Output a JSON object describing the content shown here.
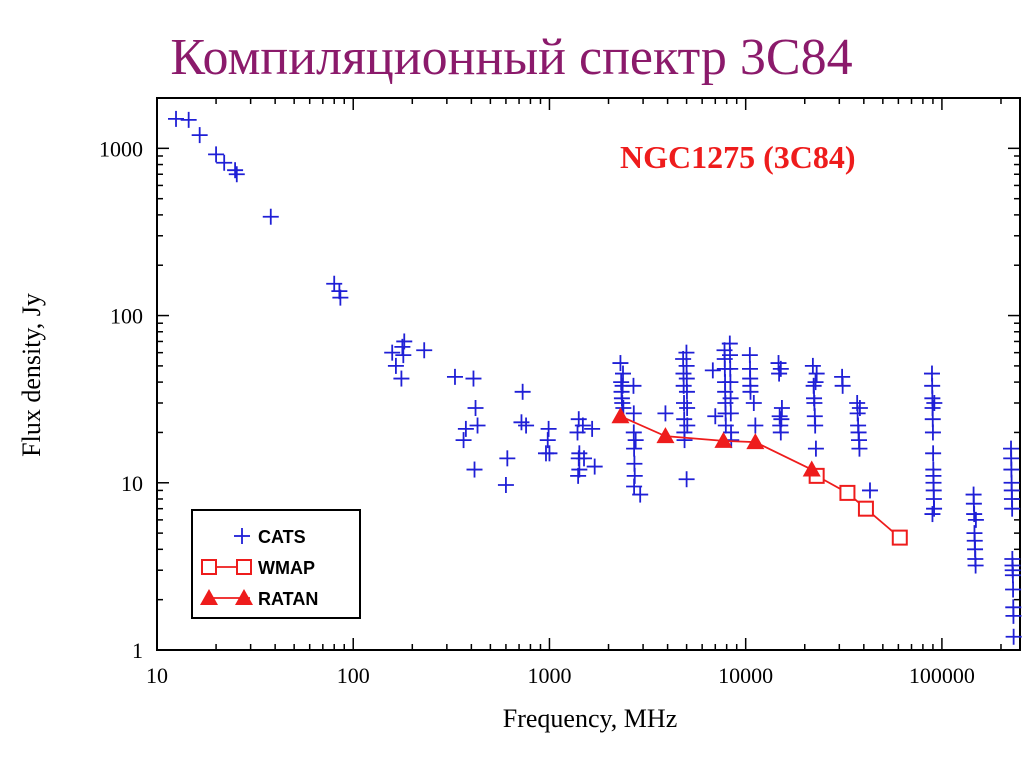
{
  "slide": {
    "title": "Компиляционный спектр 3C84"
  },
  "colors": {
    "title": "#8b1a6b",
    "cats": "#1f1fd6",
    "wmap": "#ee1c1c",
    "ratan": "#ee1c1c",
    "annotation": "#ee1c1c"
  },
  "chart_data": {
    "type": "scatter",
    "title": "",
    "xlabel": "Frequency,  MHz",
    "ylabel": "Flux density, Jy",
    "xscale": "log",
    "yscale": "log",
    "xlim": [
      10,
      250000
    ],
    "ylim": [
      1,
      2000
    ],
    "xticks": [
      10,
      100,
      1000,
      10000,
      100000
    ],
    "xtick_labels": [
      "10",
      "100",
      "1000",
      "10000",
      "100000"
    ],
    "yticks": [
      1,
      10,
      100,
      1000
    ],
    "ytick_labels": [
      "1",
      "10",
      "100",
      "1000"
    ],
    "grid": false,
    "legend_position": "bottom-left",
    "annotation": "NGC1275 (3C84)",
    "series": [
      {
        "name": "CATS",
        "marker": "plus",
        "points": [
          [
            12.5,
            1500
          ],
          [
            14.5,
            1480
          ],
          [
            16.5,
            1200
          ],
          [
            20,
            920
          ],
          [
            22,
            820
          ],
          [
            25,
            740
          ],
          [
            25.5,
            700
          ],
          [
            38,
            390
          ],
          [
            80,
            155
          ],
          [
            85,
            140
          ],
          [
            86,
            128
          ],
          [
            158,
            60
          ],
          [
            165,
            50
          ],
          [
            178,
            65
          ],
          [
            180,
            58
          ],
          [
            182,
            70
          ],
          [
            176,
            42
          ],
          [
            230,
            62
          ],
          [
            330,
            43
          ],
          [
            410,
            42
          ],
          [
            365,
            18
          ],
          [
            375,
            21
          ],
          [
            420,
            28
          ],
          [
            430,
            22
          ],
          [
            415,
            12
          ],
          [
            610,
            14
          ],
          [
            600,
            9.7
          ],
          [
            730,
            35
          ],
          [
            720,
            23
          ],
          [
            760,
            22
          ],
          [
            960,
            15
          ],
          [
            990,
            21
          ],
          [
            980,
            18
          ],
          [
            1000,
            15
          ],
          [
            1390,
            20
          ],
          [
            1410,
            14
          ],
          [
            1420,
            12
          ],
          [
            1400,
            11
          ],
          [
            1480,
            22
          ],
          [
            1500,
            14
          ],
          [
            1410,
            24
          ],
          [
            1420,
            15
          ],
          [
            1700,
            12.5
          ],
          [
            1650,
            21
          ],
          [
            2300,
            52
          ],
          [
            2320,
            40
          ],
          [
            2330,
            35
          ],
          [
            2340,
            32
          ],
          [
            2350,
            30
          ],
          [
            2360,
            38
          ],
          [
            2380,
            28
          ],
          [
            2370,
            45
          ],
          [
            2680,
            38
          ],
          [
            2690,
            20
          ],
          [
            2700,
            16
          ],
          [
            2710,
            13
          ],
          [
            2720,
            11
          ],
          [
            2690,
            26
          ],
          [
            2700,
            9.5
          ],
          [
            2900,
            8.5
          ],
          [
            2750,
            18
          ],
          [
            3900,
            26
          ],
          [
            4800,
            55
          ],
          [
            4820,
            45
          ],
          [
            4830,
            38
          ],
          [
            4850,
            30
          ],
          [
            4860,
            24
          ],
          [
            4870,
            20
          ],
          [
            4880,
            18
          ],
          [
            4990,
            60
          ],
          [
            5000,
            50
          ],
          [
            5010,
            42
          ],
          [
            5020,
            35
          ],
          [
            5030,
            28
          ],
          [
            5040,
            22
          ],
          [
            5000,
            10.5
          ],
          [
            6800,
            47
          ],
          [
            7000,
            25
          ],
          [
            7800,
            62
          ],
          [
            7820,
            55
          ],
          [
            7830,
            48
          ],
          [
            7850,
            40
          ],
          [
            7860,
            35
          ],
          [
            7880,
            30
          ],
          [
            7900,
            26
          ],
          [
            7920,
            22
          ],
          [
            8300,
            68
          ],
          [
            8320,
            58
          ],
          [
            8340,
            48
          ],
          [
            8360,
            40
          ],
          [
            8380,
            32
          ],
          [
            8400,
            26
          ],
          [
            8420,
            20
          ],
          [
            8440,
            18
          ],
          [
            10500,
            58
          ],
          [
            10520,
            48
          ],
          [
            10540,
            42
          ],
          [
            10560,
            38
          ],
          [
            10580,
            35
          ],
          [
            11000,
            30
          ],
          [
            11200,
            22
          ],
          [
            14700,
            52
          ],
          [
            14800,
            45
          ],
          [
            14900,
            25
          ],
          [
            15000,
            22
          ],
          [
            15100,
            20
          ],
          [
            15200,
            24
          ],
          [
            15300,
            28
          ],
          [
            15100,
            48
          ],
          [
            22000,
            50
          ],
          [
            22200,
            38
          ],
          [
            22300,
            32
          ],
          [
            22400,
            30
          ],
          [
            22500,
            25
          ],
          [
            22600,
            22
          ],
          [
            22700,
            40
          ],
          [
            22800,
            16
          ],
          [
            23000,
            45
          ],
          [
            31000,
            43
          ],
          [
            31200,
            38
          ],
          [
            37000,
            30
          ],
          [
            37200,
            26
          ],
          [
            37400,
            22
          ],
          [
            37600,
            20
          ],
          [
            37800,
            18
          ],
          [
            38000,
            16
          ],
          [
            38200,
            28
          ],
          [
            43000,
            9
          ],
          [
            89000,
            45
          ],
          [
            89200,
            38
          ],
          [
            89400,
            32
          ],
          [
            89600,
            28
          ],
          [
            89800,
            24
          ],
          [
            90000,
            20
          ],
          [
            90200,
            15
          ],
          [
            90400,
            12
          ],
          [
            90600,
            10
          ],
          [
            90800,
            9
          ],
          [
            91000,
            8
          ],
          [
            91200,
            7
          ],
          [
            89500,
            6.5
          ],
          [
            90500,
            11
          ],
          [
            91500,
            30
          ],
          [
            145000,
            8.5
          ],
          [
            145500,
            7.5
          ],
          [
            146000,
            6.5
          ],
          [
            146500,
            5
          ],
          [
            147000,
            4.5
          ],
          [
            147500,
            4
          ],
          [
            148000,
            3.5
          ],
          [
            148500,
            3.2
          ],
          [
            149000,
            6
          ],
          [
            225000,
            16
          ],
          [
            225500,
            14
          ],
          [
            226000,
            12
          ],
          [
            226500,
            10
          ],
          [
            227000,
            9
          ],
          [
            227500,
            8
          ],
          [
            228000,
            7
          ],
          [
            228500,
            3.5
          ],
          [
            229000,
            3.2
          ],
          [
            229500,
            3
          ],
          [
            230000,
            2.8
          ],
          [
            230500,
            2.3
          ],
          [
            231000,
            1.8
          ],
          [
            231500,
            1.6
          ],
          [
            232000,
            1.2
          ]
        ]
      },
      {
        "name": "WMAP",
        "marker": "open-square",
        "connected": true,
        "points": [
          [
            23000,
            11
          ],
          [
            33000,
            8.7
          ],
          [
            41000,
            7
          ],
          [
            61000,
            4.7
          ]
        ]
      },
      {
        "name": "RATAN",
        "marker": "filled-triangle",
        "connected": true,
        "points": [
          [
            2300,
            25
          ],
          [
            3900,
            19
          ],
          [
            7700,
            17.8
          ],
          [
            11200,
            17.5
          ],
          [
            21700,
            12
          ]
        ]
      }
    ]
  }
}
